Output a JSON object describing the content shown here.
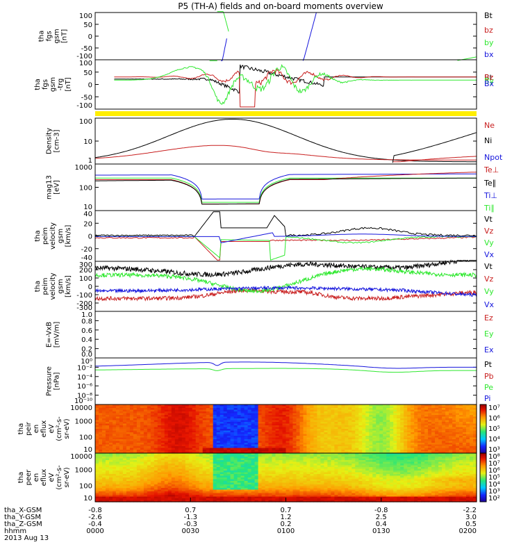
{
  "title": "P5 (TH-A) fields and on-board moments overview",
  "colors": {
    "black": "#000000",
    "red": "#c81e1e",
    "green": "#2ee82e",
    "blue": "#1414dc",
    "yellow": "#ffee00"
  },
  "chart_data": [
    {
      "id": "fgs",
      "type": "line",
      "ylabel": [
        "tha",
        "fgs",
        "gsm",
        "[nT]"
      ],
      "ylim": [
        -100,
        100
      ],
      "yticks": [
        "100",
        "50",
        "0",
        "-50",
        "-100"
      ],
      "legend": [
        {
          "label": "Bt",
          "color": "black"
        },
        {
          "label": "bz",
          "color": "red"
        },
        {
          "label": "by",
          "color": "green"
        },
        {
          "label": "bx",
          "color": "blue"
        }
      ]
    },
    {
      "id": "fgs_zoom",
      "type": "line",
      "ylabel": [
        "tha",
        "fgs",
        "gsm",
        "-trg",
        "[nT]"
      ],
      "ylim": [
        -120,
        110
      ],
      "yticks": [
        "100",
        "50",
        "0",
        "-50",
        "-100"
      ],
      "legend": [
        {
          "label": "Bt",
          "color": "black"
        },
        {
          "label": "Bz",
          "color": "red"
        },
        {
          "label": "By",
          "color": "green"
        },
        {
          "label": "Bx",
          "color": "blue"
        }
      ]
    },
    {
      "id": "density",
      "type": "line",
      "ylabel": [
        "Density",
        "[cm-3]"
      ],
      "scale": "log",
      "ylim": [
        0.6,
        200
      ],
      "yticks": [
        "100",
        "10",
        "1"
      ],
      "legend": [
        {
          "label": "Ne",
          "color": "red"
        },
        {
          "label": "Ni",
          "color": "black"
        },
        {
          "label": "Npot",
          "color": "blue"
        }
      ]
    },
    {
      "id": "temperature",
      "type": "line",
      "ylabel": [
        "mag13",
        "[eV]"
      ],
      "scale": "log",
      "ylim": [
        3,
        2500
      ],
      "yticks": [
        "1000",
        "100",
        "10"
      ],
      "legend": [
        {
          "label": "Te⊥",
          "color": "red"
        },
        {
          "label": "Te∥",
          "color": "black"
        },
        {
          "label": "Ti⊥",
          "color": "blue"
        },
        {
          "label": "Ti∥",
          "color": "green"
        }
      ]
    },
    {
      "id": "vel_e",
      "type": "line",
      "ylabel": [
        "tha",
        "peim",
        "velocity",
        "gsm",
        "[km/s]"
      ],
      "ylim": [
        -40,
        42
      ],
      "yticks": [
        "40",
        "20",
        "0",
        "-20",
        "-40"
      ],
      "legend": [
        {
          "label": "Vt",
          "color": "black"
        },
        {
          "label": "Vz",
          "color": "red"
        },
        {
          "label": "Vy",
          "color": "green"
        },
        {
          "label": "Vx",
          "color": "blue"
        }
      ]
    },
    {
      "id": "vel_i",
      "type": "line",
      "ylabel": [
        "tha",
        "peim",
        "velocity",
        "gsm",
        "[km/s]"
      ],
      "ylim": [
        -300,
        320
      ],
      "yticks": [
        "300",
        "200",
        "100",
        "0",
        "-100",
        "-200",
        "-300"
      ],
      "legend": [
        {
          "label": "Vt",
          "color": "black"
        },
        {
          "label": "Vz",
          "color": "red"
        },
        {
          "label": "Vy",
          "color": "green"
        },
        {
          "label": "Vx",
          "color": "blue"
        }
      ]
    },
    {
      "id": "efield",
      "type": "line",
      "ylabel": [
        "E=-VxB",
        "[mV/m]"
      ],
      "ylim": [
        0,
        1
      ],
      "yticks": [
        "1.0",
        "0.8",
        "0.6",
        "0.4",
        "0.2",
        "0.0"
      ],
      "legend": [
        {
          "label": "Ez",
          "color": "red"
        },
        {
          "label": "Ey",
          "color": "green"
        },
        {
          "label": "Ex",
          "color": "blue"
        }
      ]
    },
    {
      "id": "pressure",
      "type": "line",
      "ylabel": [
        "Pressure",
        "[nPa]"
      ],
      "scale": "log",
      "yticks": [
        "10⁰",
        "10⁻²",
        "10⁻⁴",
        "10⁻⁶",
        "10⁻⁸",
        "10⁻¹⁰"
      ],
      "legend": [
        {
          "label": "Pt",
          "color": "black"
        },
        {
          "label": "Pb",
          "color": "red"
        },
        {
          "label": "Pe",
          "color": "green"
        },
        {
          "label": "Pi",
          "color": "blue"
        }
      ]
    },
    {
      "id": "spec_i",
      "type": "heatmap",
      "ylabel": [
        "tha",
        "peir",
        "en",
        "eflux",
        "eV",
        "(cm²-s-",
        "sr-eV)"
      ],
      "scale": "log",
      "yticks": [
        "10000",
        "1000",
        "100",
        "10"
      ],
      "colorbar": [
        "10⁷",
        "10⁶",
        "10⁵",
        "10⁴",
        "10³"
      ]
    },
    {
      "id": "spec_e",
      "type": "heatmap",
      "ylabel": [
        "tha",
        "peer",
        "en",
        "eflux",
        "eV",
        "(cm²-s-",
        "sr-eV)"
      ],
      "scale": "log",
      "yticks": [
        "10000",
        "1000",
        "100",
        "10"
      ],
      "colorbar": [
        "10⁸",
        "10⁷",
        "10⁶",
        "10⁵",
        "10⁴",
        "10³",
        "10²"
      ]
    }
  ],
  "xaxis": {
    "rows": [
      {
        "label": "tha_X-GSM",
        "values": [
          "-0.8",
          "0.7",
          "0.7",
          "-0.8",
          "-2.2"
        ]
      },
      {
        "label": "tha_Y-GSM",
        "values": [
          "-2.6",
          "-1.3",
          "1.2",
          "2.5",
          "3.0"
        ]
      },
      {
        "label": "tha_Z-GSM",
        "values": [
          "-0.4",
          "-0.3",
          "0.2",
          "0.4",
          "0.5"
        ]
      },
      {
        "label": "hhmm",
        "values": [
          "0000",
          "0030",
          "0100",
          "0130",
          "0200"
        ]
      }
    ],
    "date": "2013 Aug 13"
  }
}
